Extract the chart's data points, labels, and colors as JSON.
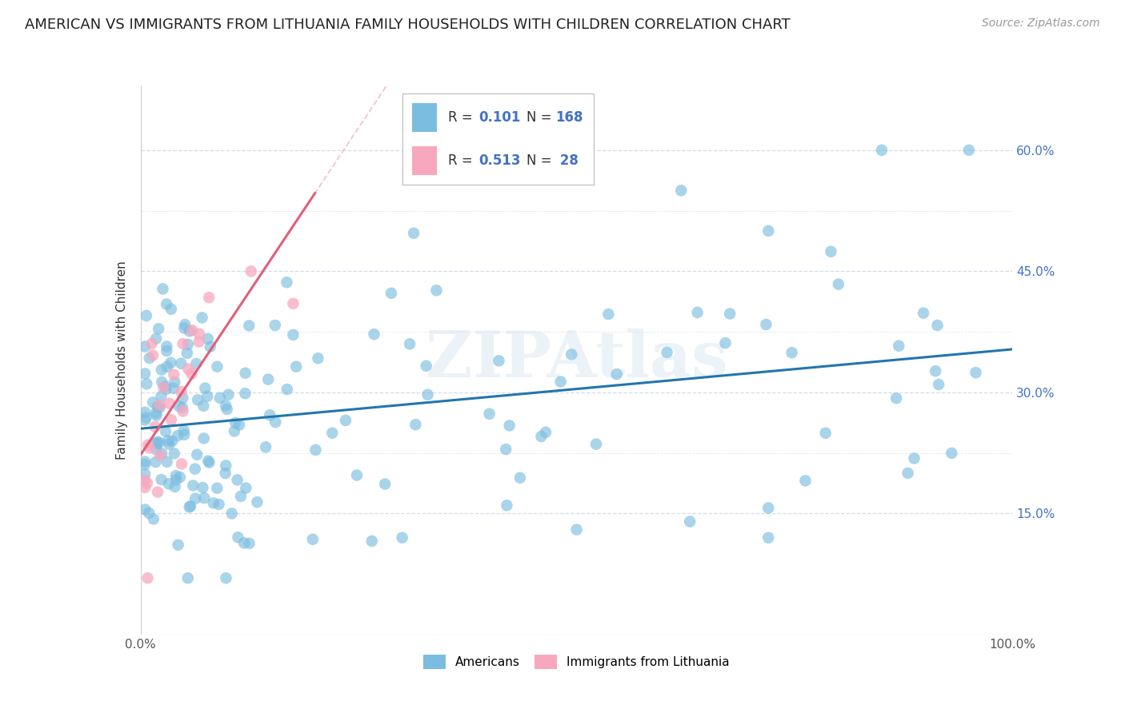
{
  "title": "AMERICAN VS IMMIGRANTS FROM LITHUANIA FAMILY HOUSEHOLDS WITH CHILDREN CORRELATION CHART",
  "source": "Source: ZipAtlas.com",
  "ylabel": "Family Households with Children",
  "xlim": [
    0,
    1.0
  ],
  "ylim": [
    0.0,
    0.68
  ],
  "ytick_vals": [
    0.15,
    0.3,
    0.45,
    0.6
  ],
  "ytick_labels": [
    "15.0%",
    "30.0%",
    "45.0%",
    "60.0%"
  ],
  "xtick_vals": [
    0.0,
    0.2,
    0.4,
    0.6,
    0.8,
    1.0
  ],
  "xtick_labels": [
    "0.0%",
    "",
    "",
    "",
    "",
    "100.0%"
  ],
  "R_americans": 0.101,
  "N_americans": 168,
  "R_lithuania": 0.513,
  "N_lithuania": 28,
  "color_americans": "#7bbde0",
  "color_lithuania": "#f7a8be",
  "line_color_americans": "#2176ae",
  "line_color_lithuania": "#e0607a",
  "dashed_line_color": "#f0b8c8",
  "background_color": "#ffffff",
  "grid_color": "#d0d8e8",
  "watermark": "ZIPAtlas",
  "legend_label_americans": "Americans",
  "legend_label_lithuania": "Immigrants from Lithuania",
  "title_fontsize": 13,
  "axis_label_fontsize": 11,
  "tick_fontsize": 11,
  "source_fontsize": 10
}
